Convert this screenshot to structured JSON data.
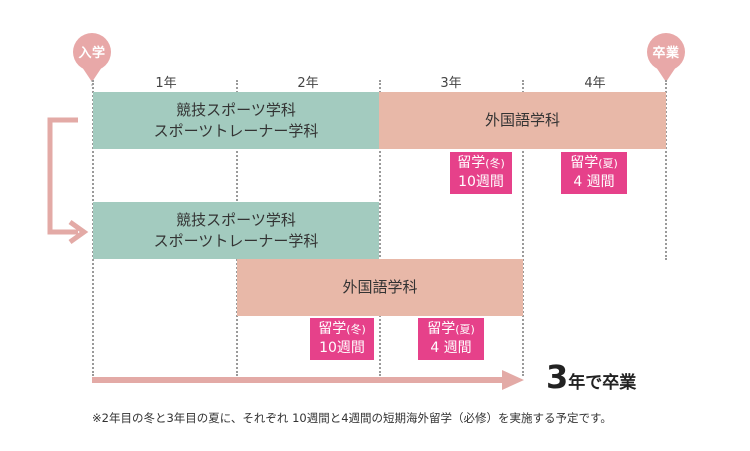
{
  "badges": {
    "entry": "入学",
    "graduation": "卒業"
  },
  "years": [
    "1年",
    "2年",
    "3年",
    "4年"
  ],
  "track1": {
    "green_line1": "競技スポーツ学科",
    "green_line2": "スポーツトレーナー学科",
    "pink": "外国語学科",
    "tag1_line1": "留学",
    "tag1_season": "(冬)",
    "tag1_line2": "10週間",
    "tag2_line1": "留学",
    "tag2_season": "(夏)",
    "tag2_line2": "4 週間"
  },
  "track2": {
    "green_line1": "競技スポーツ学科",
    "green_line2": "スポーツトレーナー学科",
    "pink": "外国語学科",
    "tag1_line1": "留学",
    "tag1_season": "(冬)",
    "tag1_line2": "10週間",
    "tag2_line1": "留学",
    "tag2_season": "(夏)",
    "tag2_line2": "4 週間"
  },
  "graduation": {
    "number": "3",
    "text": "年で卒業"
  },
  "footnote": "※2年目の冬と3年目の夏に、それぞれ 10週間と4週間の短期海外留学（必修）を実施する予定です。",
  "colors": {
    "green": "#a3cbbf",
    "pink": "#e8b8a8",
    "magenta": "#e6418a",
    "badge": "#e8a8a8",
    "arrow": "#e3aaa6"
  }
}
